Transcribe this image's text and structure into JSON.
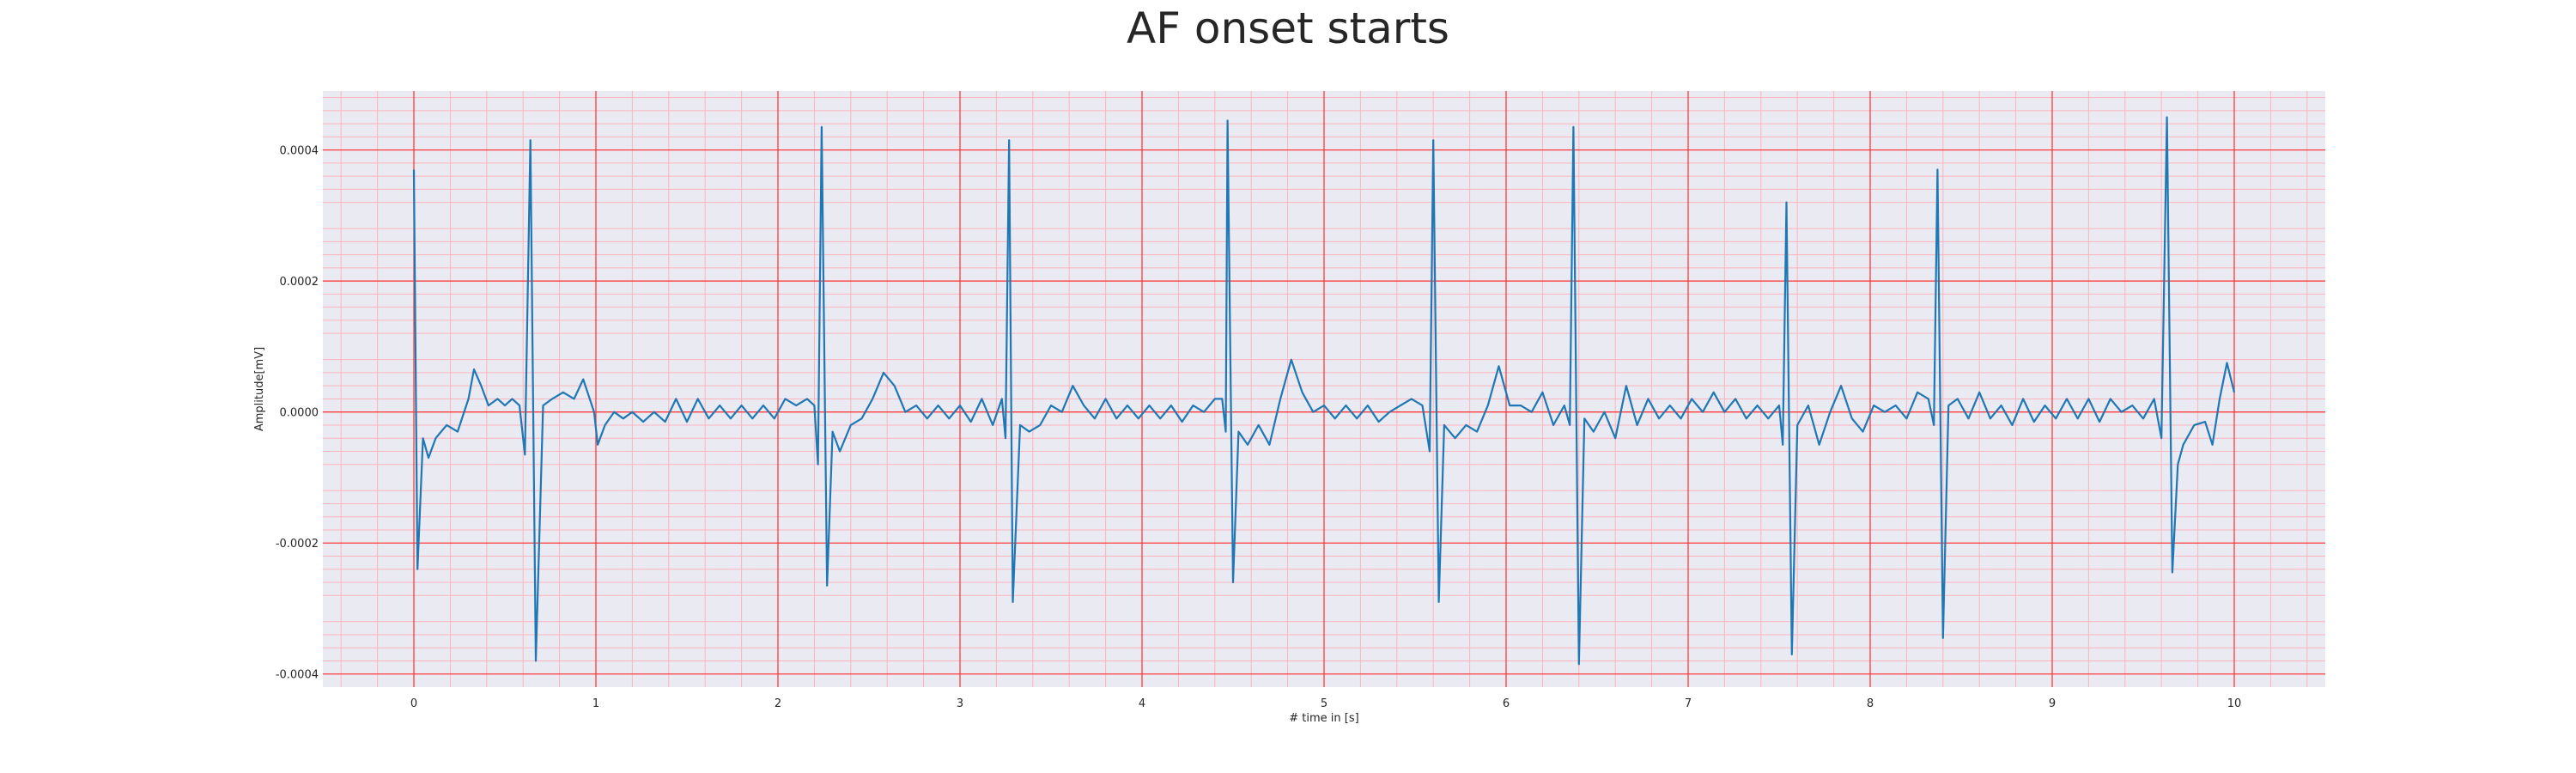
{
  "chart_data": {
    "type": "line",
    "title": "AF onset starts",
    "xlabel": "# time in [s]",
    "ylabel": "Amplitude[mV]",
    "xlim": [
      -0.5,
      10.5
    ],
    "ylim": [
      -0.00042,
      0.00049
    ],
    "x_ticks": [
      "0",
      "1",
      "2",
      "3",
      "4",
      "5",
      "6",
      "7",
      "8",
      "9",
      "10"
    ],
    "y_ticks": [
      "-0.0004",
      "-0.0002",
      "0.0000",
      "0.0002",
      "0.0004"
    ],
    "grid": true,
    "colors": {
      "background": "#eaeaf2",
      "line": "#1f77b4",
      "major_grid": "#ff3b3b",
      "minor_grid": "#ffb3bd"
    },
    "series": [
      {
        "values": [
          [
            0.0,
            0.00037
          ],
          [
            0.02,
            -0.00024
          ],
          [
            0.05,
            -4e-05
          ],
          [
            0.08,
            -7e-05
          ],
          [
            0.12,
            -4e-05
          ],
          [
            0.18,
            -2e-05
          ],
          [
            0.24,
            -3e-05
          ],
          [
            0.3,
            2e-05
          ],
          [
            0.33,
            6.5e-05
          ],
          [
            0.37,
            4e-05
          ],
          [
            0.41,
            1e-05
          ],
          [
            0.46,
            2e-05
          ],
          [
            0.5,
            1e-05
          ],
          [
            0.54,
            2e-05
          ],
          [
            0.58,
            1e-05
          ],
          [
            0.61,
            -6.5e-05
          ],
          [
            0.64,
            0.000415
          ],
          [
            0.67,
            -0.00038
          ],
          [
            0.71,
            1e-05
          ],
          [
            0.76,
            2e-05
          ],
          [
            0.82,
            3e-05
          ],
          [
            0.88,
            2e-05
          ],
          [
            0.93,
            5e-05
          ],
          [
            0.99,
            0.0
          ],
          [
            1.01,
            -5e-05
          ],
          [
            1.05,
            -2e-05
          ],
          [
            1.1,
            0.0
          ],
          [
            1.15,
            -1e-05
          ],
          [
            1.2,
            0.0
          ],
          [
            1.26,
            -1.5e-05
          ],
          [
            1.32,
            0.0
          ],
          [
            1.38,
            -1.5e-05
          ],
          [
            1.44,
            2e-05
          ],
          [
            1.5,
            -1.5e-05
          ],
          [
            1.56,
            2e-05
          ],
          [
            1.62,
            -1e-05
          ],
          [
            1.68,
            1e-05
          ],
          [
            1.74,
            -1e-05
          ],
          [
            1.8,
            1e-05
          ],
          [
            1.86,
            -1e-05
          ],
          [
            1.92,
            1e-05
          ],
          [
            1.98,
            -1e-05
          ],
          [
            2.04,
            2e-05
          ],
          [
            2.1,
            1e-05
          ],
          [
            2.16,
            2e-05
          ],
          [
            2.2,
            1e-05
          ],
          [
            2.22,
            -8e-05
          ],
          [
            2.24,
            0.000435
          ],
          [
            2.27,
            -0.000265
          ],
          [
            2.3,
            -3e-05
          ],
          [
            2.34,
            -6e-05
          ],
          [
            2.4,
            -2e-05
          ],
          [
            2.46,
            -1e-05
          ],
          [
            2.52,
            2e-05
          ],
          [
            2.58,
            6e-05
          ],
          [
            2.64,
            4e-05
          ],
          [
            2.7,
            0.0
          ],
          [
            2.76,
            1e-05
          ],
          [
            2.82,
            -1e-05
          ],
          [
            2.88,
            1e-05
          ],
          [
            2.94,
            -1e-05
          ],
          [
            3.0,
            1e-05
          ],
          [
            3.06,
            -1.5e-05
          ],
          [
            3.12,
            2e-05
          ],
          [
            3.18,
            -2e-05
          ],
          [
            3.23,
            2e-05
          ],
          [
            3.25,
            -4e-05
          ],
          [
            3.27,
            0.000415
          ],
          [
            3.29,
            -0.00029
          ],
          [
            3.33,
            -2e-05
          ],
          [
            3.38,
            -3e-05
          ],
          [
            3.44,
            -2e-05
          ],
          [
            3.5,
            1e-05
          ],
          [
            3.56,
            0.0
          ],
          [
            3.62,
            4e-05
          ],
          [
            3.68,
            1e-05
          ],
          [
            3.74,
            -1e-05
          ],
          [
            3.8,
            2e-05
          ],
          [
            3.86,
            -1e-05
          ],
          [
            3.92,
            1e-05
          ],
          [
            3.98,
            -1e-05
          ],
          [
            4.04,
            1e-05
          ],
          [
            4.1,
            -1e-05
          ],
          [
            4.16,
            1e-05
          ],
          [
            4.22,
            -1.5e-05
          ],
          [
            4.28,
            1e-05
          ],
          [
            4.34,
            0.0
          ],
          [
            4.4,
            2e-05
          ],
          [
            4.44,
            2e-05
          ],
          [
            4.46,
            -3e-05
          ],
          [
            4.47,
            0.000445
          ],
          [
            4.5,
            -0.00026
          ],
          [
            4.53,
            -3e-05
          ],
          [
            4.58,
            -5e-05
          ],
          [
            4.64,
            -2e-05
          ],
          [
            4.7,
            -5e-05
          ],
          [
            4.76,
            2e-05
          ],
          [
            4.82,
            8e-05
          ],
          [
            4.88,
            3e-05
          ],
          [
            4.94,
            0.0
          ],
          [
            5.0,
            1e-05
          ],
          [
            5.06,
            -1e-05
          ],
          [
            5.12,
            1e-05
          ],
          [
            5.18,
            -1e-05
          ],
          [
            5.24,
            1e-05
          ],
          [
            5.3,
            -1.5e-05
          ],
          [
            5.36,
            0.0
          ],
          [
            5.42,
            1e-05
          ],
          [
            5.48,
            2e-05
          ],
          [
            5.54,
            1e-05
          ],
          [
            5.58,
            -6e-05
          ],
          [
            5.6,
            0.000415
          ],
          [
            5.63,
            -0.00029
          ],
          [
            5.66,
            -2e-05
          ],
          [
            5.72,
            -4e-05
          ],
          [
            5.78,
            -2e-05
          ],
          [
            5.84,
            -3e-05
          ],
          [
            5.9,
            1e-05
          ],
          [
            5.96,
            7e-05
          ],
          [
            6.02,
            1e-05
          ],
          [
            6.08,
            1e-05
          ],
          [
            6.14,
            0.0
          ],
          [
            6.2,
            3e-05
          ],
          [
            6.26,
            -2e-05
          ],
          [
            6.32,
            1e-05
          ],
          [
            6.35,
            -2e-05
          ],
          [
            6.37,
            0.000435
          ],
          [
            6.4,
            -0.000385
          ],
          [
            6.43,
            -1e-05
          ],
          [
            6.48,
            -3e-05
          ],
          [
            6.54,
            0.0
          ],
          [
            6.6,
            -4e-05
          ],
          [
            6.66,
            4e-05
          ],
          [
            6.72,
            -2e-05
          ],
          [
            6.78,
            2e-05
          ],
          [
            6.84,
            -1e-05
          ],
          [
            6.9,
            1e-05
          ],
          [
            6.96,
            -1e-05
          ],
          [
            7.02,
            2e-05
          ],
          [
            7.08,
            0.0
          ],
          [
            7.14,
            3e-05
          ],
          [
            7.2,
            0.0
          ],
          [
            7.26,
            2e-05
          ],
          [
            7.32,
            -1e-05
          ],
          [
            7.38,
            1e-05
          ],
          [
            7.44,
            -1e-05
          ],
          [
            7.5,
            1e-05
          ],
          [
            7.52,
            -5e-05
          ],
          [
            7.54,
            0.00032
          ],
          [
            7.57,
            -0.00037
          ],
          [
            7.6,
            -2e-05
          ],
          [
            7.66,
            1e-05
          ],
          [
            7.72,
            -5e-05
          ],
          [
            7.78,
            0.0
          ],
          [
            7.84,
            4e-05
          ],
          [
            7.9,
            -1e-05
          ],
          [
            7.96,
            -3e-05
          ],
          [
            8.02,
            1e-05
          ],
          [
            8.08,
            0.0
          ],
          [
            8.14,
            1e-05
          ],
          [
            8.2,
            -1e-05
          ],
          [
            8.26,
            3e-05
          ],
          [
            8.32,
            2e-05
          ],
          [
            8.35,
            -2e-05
          ],
          [
            8.37,
            0.00037
          ],
          [
            8.4,
            -0.000345
          ],
          [
            8.43,
            1e-05
          ],
          [
            8.48,
            2e-05
          ],
          [
            8.54,
            -1e-05
          ],
          [
            8.6,
            3e-05
          ],
          [
            8.66,
            -1e-05
          ],
          [
            8.72,
            1e-05
          ],
          [
            8.78,
            -2e-05
          ],
          [
            8.84,
            2e-05
          ],
          [
            8.9,
            -1.5e-05
          ],
          [
            8.96,
            1e-05
          ],
          [
            9.02,
            -1e-05
          ],
          [
            9.08,
            2e-05
          ],
          [
            9.14,
            -1e-05
          ],
          [
            9.2,
            2e-05
          ],
          [
            9.26,
            -1.5e-05
          ],
          [
            9.32,
            2e-05
          ],
          [
            9.38,
            0.0
          ],
          [
            9.44,
            1e-05
          ],
          [
            9.5,
            -1e-05
          ],
          [
            9.56,
            2e-05
          ],
          [
            9.6,
            -4e-05
          ],
          [
            9.63,
            0.00045
          ],
          [
            9.66,
            -0.000245
          ],
          [
            9.69,
            -8e-05
          ],
          [
            9.72,
            -5e-05
          ],
          [
            9.78,
            -2e-05
          ],
          [
            9.84,
            -1.5e-05
          ],
          [
            9.88,
            -5e-05
          ],
          [
            9.92,
            2e-05
          ],
          [
            9.96,
            7.5e-05
          ],
          [
            10.0,
            3e-05
          ]
        ]
      }
    ]
  }
}
